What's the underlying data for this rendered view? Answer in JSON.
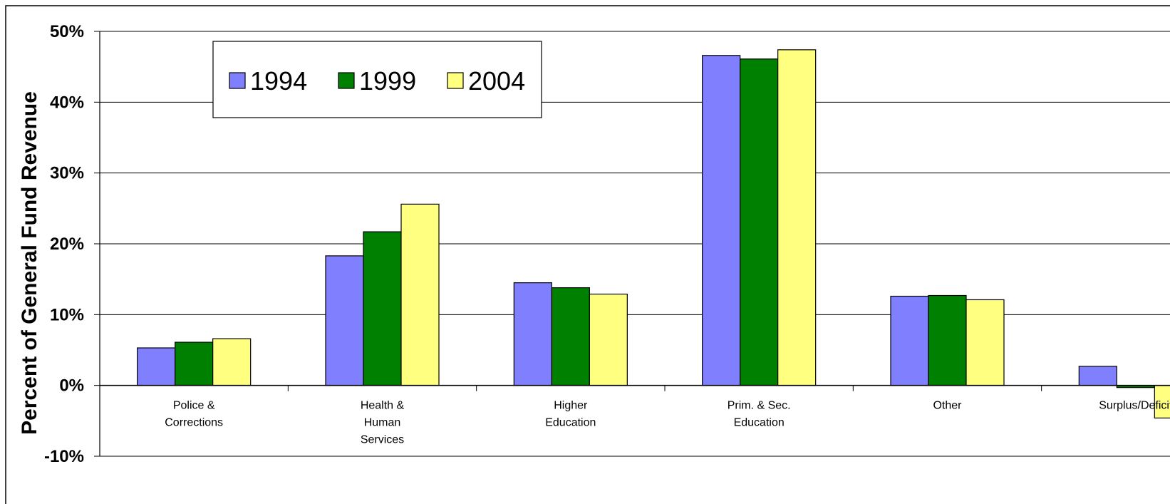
{
  "chart_data": {
    "type": "bar",
    "title": "",
    "xlabel": "",
    "ylabel": "Percent of General Fund Revenue",
    "ylim": [
      -10,
      50
    ],
    "yticks": [
      50,
      40,
      30,
      20,
      10,
      0,
      -10
    ],
    "ytick_labels": [
      "50%",
      "40%",
      "30%",
      "20%",
      "10%",
      "0%",
      "-10%"
    ],
    "categories": [
      [
        "Police &",
        "Corrections"
      ],
      [
        "Health &",
        "Human",
        "Services"
      ],
      [
        "Higher",
        "Education"
      ],
      [
        "Prim. & Sec.",
        "Education"
      ],
      [
        "Other"
      ],
      [
        "Surplus/Deficit"
      ]
    ],
    "series": [
      {
        "name": "1994",
        "color": "#8080ff",
        "values": [
          5.3,
          18.3,
          14.5,
          46.6,
          12.6,
          2.7
        ]
      },
      {
        "name": "1999",
        "color": "#008000",
        "values": [
          6.1,
          21.7,
          13.8,
          46.1,
          12.7,
          -0.3
        ]
      },
      {
        "name": "2004",
        "color": "#ffff80",
        "values": [
          6.6,
          25.6,
          12.9,
          47.4,
          12.1,
          -4.6
        ]
      }
    ],
    "grid": true,
    "legend_position": "top-left"
  }
}
